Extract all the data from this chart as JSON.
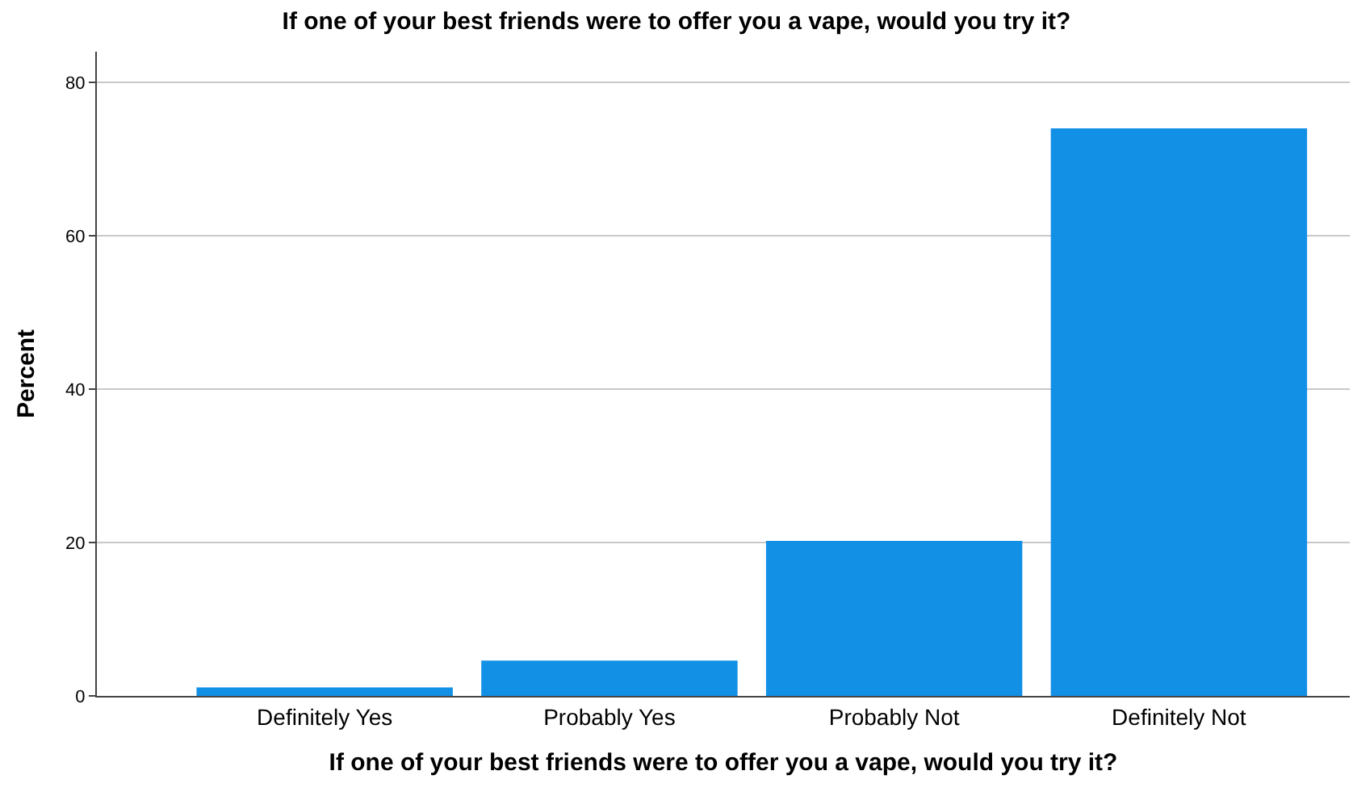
{
  "chart_data": {
    "type": "bar",
    "title": "If one of your best friends were to offer you a vape, would you try it?",
    "xlabel": "If one of your best friends were to offer you a vape, would you try it?",
    "ylabel": "Percent",
    "categories": [
      "Definitely Yes",
      "Probably Yes",
      "Probably Not",
      "Definitely Not"
    ],
    "values": [
      1.1,
      4.6,
      20.2,
      74.0
    ],
    "color": "#1290e6",
    "ylim": [
      0,
      84
    ],
    "yticks": [
      0,
      20,
      40,
      60,
      80
    ],
    "grid": "y",
    "legend": false
  }
}
